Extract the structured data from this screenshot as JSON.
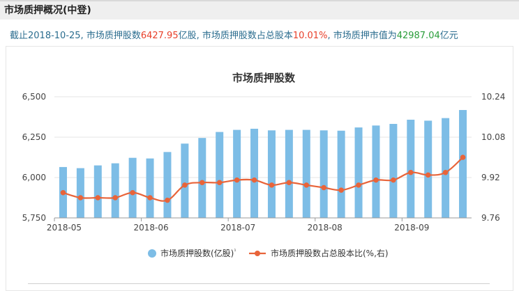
{
  "header": {
    "title": "市场质押概况(中登)"
  },
  "summary": {
    "prefix": "截止2018-10-25, 市场质押股数",
    "shares_value": "6427.95",
    "shares_unit": "亿股, 市场质押股数占总股本",
    "ratio_value": "10.01%",
    "ratio_sep": ", 市场质押市值为",
    "mv_value": "42987.04",
    "mv_unit": "亿元"
  },
  "colors": {
    "bar": "#7dbde6",
    "line": "#e8643a",
    "grid": "#e4e4e4"
  },
  "chart_data": {
    "type": "bar",
    "title": "市场质押股数",
    "x_tick_labels": [
      "2018-05",
      "2018-06",
      "2018-07",
      "2018-08",
      "2018-09"
    ],
    "y_left_ticks": [
      "6,500",
      "6,250",
      "6,000",
      "5,750"
    ],
    "y_right_ticks": [
      "10.24",
      "10.08",
      "9.92",
      "9.76"
    ],
    "y_left_range": [
      5750,
      6500
    ],
    "y_right_range": [
      9.76,
      10.24
    ],
    "series": [
      {
        "name": "市场质押股数(亿股)",
        "legend_suffix": "¹",
        "type": "bar",
        "axis": "left",
        "values": [
          6065,
          6058,
          6075,
          6088,
          6122,
          6118,
          6158,
          6210,
          6245,
          6282,
          6295,
          6302,
          6292,
          6295,
          6295,
          6292,
          6290,
          6310,
          6322,
          6332,
          6358,
          6352,
          6368,
          6418
        ]
      },
      {
        "name": "市场质押股数占总股本比(%,右)",
        "type": "line",
        "axis": "right",
        "values": [
          9.86,
          9.84,
          9.84,
          9.84,
          9.86,
          9.84,
          9.83,
          9.89,
          9.9,
          9.9,
          9.91,
          9.91,
          9.89,
          9.9,
          9.89,
          9.88,
          9.87,
          9.89,
          9.91,
          9.91,
          9.94,
          9.93,
          9.94,
          10.0
        ]
      }
    ],
    "grid": true,
    "legend_position": "bottom"
  }
}
